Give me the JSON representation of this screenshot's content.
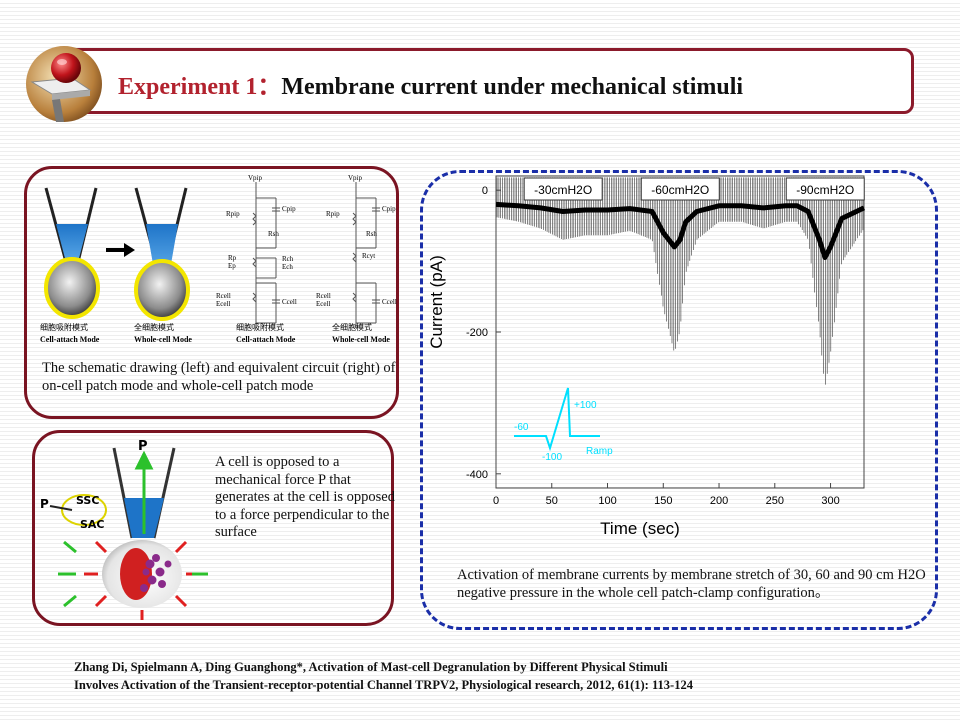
{
  "header": {
    "title_prefix": "Experiment 1",
    "title_separator": "：",
    "title_main": "Membrane current under mechanical stimuli",
    "logo_icon": "3d-sphere-logo-icon"
  },
  "top_left_panel": {
    "diagram_labels": {
      "cell_attach_cn": "细胞吸附模式",
      "cell_attach_en": "Cell-attach Mode",
      "whole_cell_cn": "全细胞模式",
      "whole_cell_en": "Whole-cell Mode",
      "circuit_cell_attach_cn": "细胞吸附模式",
      "circuit_cell_attach_en": "Cell-attach Mode",
      "circuit_whole_cell_cn": "全细胞模式",
      "circuit_whole_cell_en": "Whole-cell Mode"
    },
    "circuit_labels": {
      "vpip": "Vpip",
      "rpip": "Rpip",
      "cpip": "Cpip",
      "rsh": "Rsh",
      "rp": "Rp",
      "ep": "Ep",
      "rch": "Rch",
      "ech": "Ech",
      "rcell": "Rcell",
      "ecell": "Ecell",
      "ccell": "Ccell",
      "rcyt": "Rcyt"
    },
    "caption": "The schematic drawing (left) and equivalent circuit (right) of on-cell patch mode and whole-cell patch mode"
  },
  "bottom_left_panel": {
    "labels": {
      "p_top": "P",
      "p_left": "P",
      "ssc": "SSC",
      "sac": "SAC"
    },
    "caption": "A cell is opposed to a mechanical force P that generates at the cell is opposed to a force perpendicular to the surface"
  },
  "right_panel": {
    "caption": "Activation of membrane currents by membrane stretch of 30, 60 and 90 cm H2O negative pressure in the whole cell patch-clamp configuration。"
  },
  "chart_data": {
    "type": "line",
    "title": "",
    "xlabel": "Time (sec)",
    "ylabel": "Current (pA)",
    "xlim": [
      0,
      330
    ],
    "ylim": [
      -420,
      20
    ],
    "x_ticks": [
      0,
      50,
      100,
      150,
      200,
      250,
      300
    ],
    "y_ticks": [
      0,
      -200,
      -400
    ],
    "stimuli": [
      {
        "label": "-30cmH2O",
        "start": 45,
        "end": 75
      },
      {
        "label": "-60cmH2O",
        "start": 150,
        "end": 170
      },
      {
        "label": "-90cmH2O",
        "start": 280,
        "end": 310
      }
    ],
    "series": [
      {
        "x": [
          0,
          20,
          40,
          60,
          80,
          100,
          120,
          140,
          150,
          160,
          165,
          170,
          180,
          200,
          220,
          240,
          260,
          270,
          280,
          290,
          295,
          300,
          310,
          330
        ],
        "values": [
          -20,
          -22,
          -25,
          -30,
          -28,
          -28,
          -26,
          -30,
          -60,
          -80,
          -70,
          -45,
          -30,
          -22,
          -22,
          -25,
          -22,
          -22,
          -30,
          -70,
          -95,
          -80,
          -40,
          -25
        ]
      }
    ],
    "inset_ramp": {
      "labels": [
        "-60",
        "-100",
        "+100",
        "Ramp"
      ],
      "x": [
        0,
        1,
        2,
        3,
        4,
        5
      ],
      "values": [
        -60,
        -60,
        -100,
        100,
        -60,
        -60
      ]
    }
  },
  "footer": {
    "citation_line1": "Zhang Di, Spielmann A, Ding Guanghong*, Activation of Mast-cell Degranulation by Different Physical Stimuli",
    "citation_line2": "Involves Activation of the Transient-receptor-potential Channel TRPV2, Physiological research, 2012, 61(1): 113-124"
  },
  "colors": {
    "banner_border": "#8b1a2b",
    "title_accent": "#b2222e",
    "panel_border": "#7a1422",
    "dashed_border": "#1a2ea8",
    "stimulus_bar": "#1a3ae0",
    "ramp_line": "#00e0ff"
  }
}
